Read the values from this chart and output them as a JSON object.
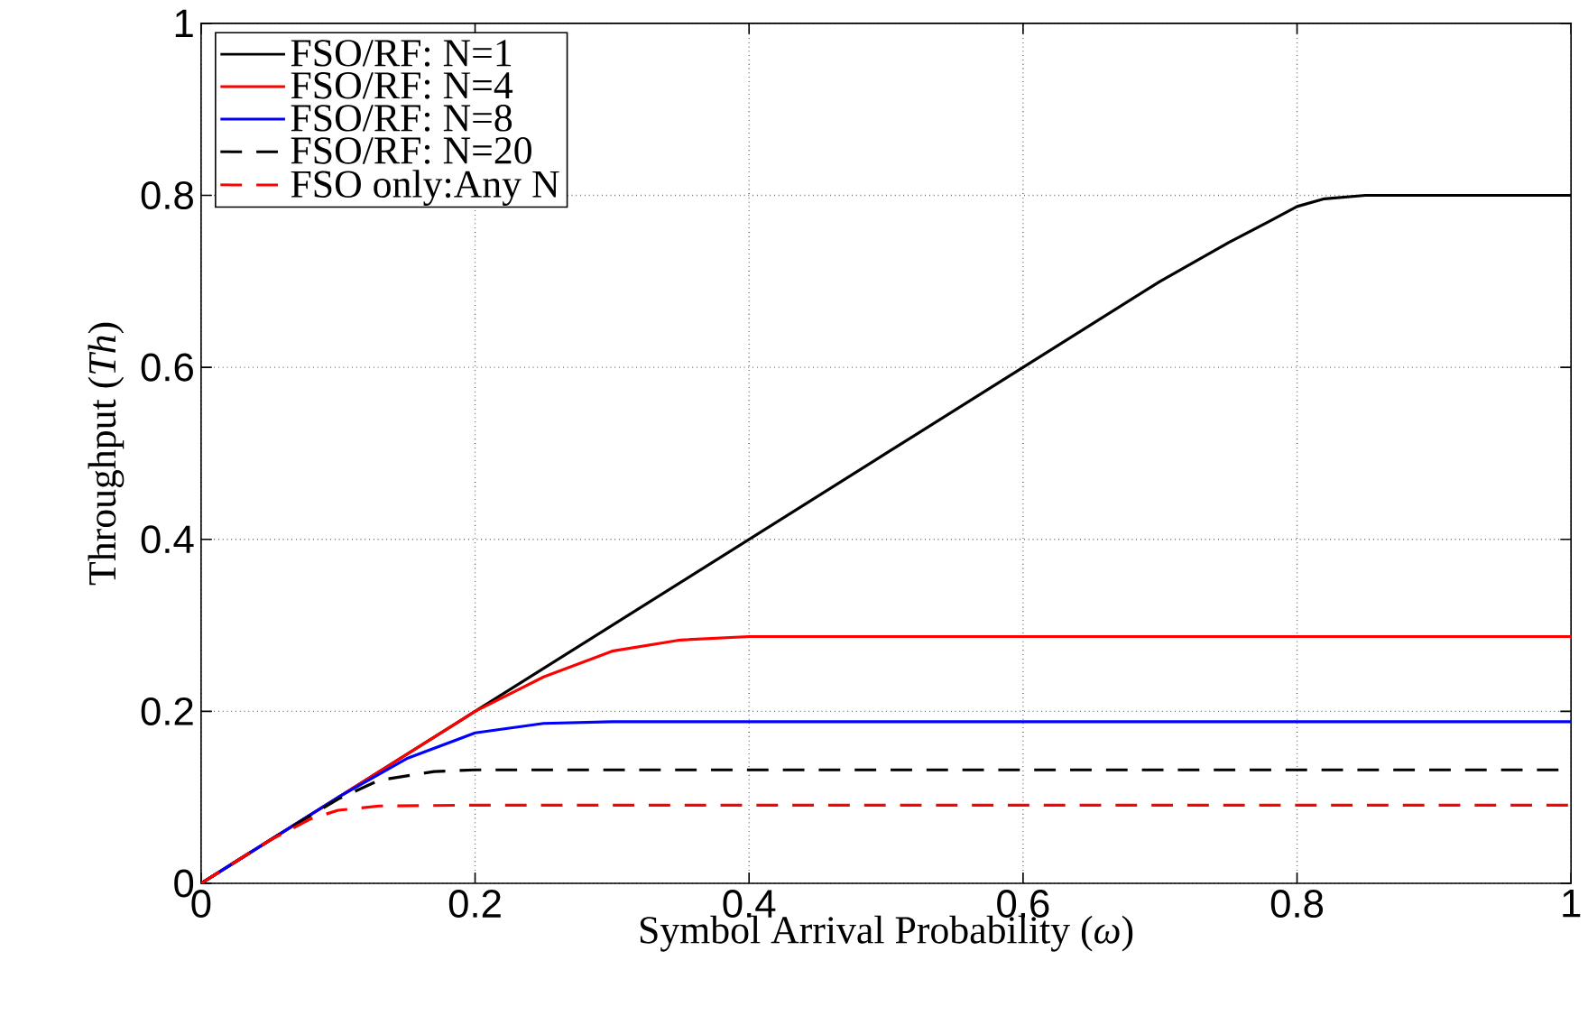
{
  "chart_data": {
    "type": "line",
    "xlabel": "Symbol Arrival Probability (*ω*)",
    "ylabel": "Throughput (*Th*)",
    "xlim": [
      0,
      1
    ],
    "ylim": [
      0,
      1
    ],
    "xticks": [
      0,
      0.2,
      0.4,
      0.6,
      0.8,
      1
    ],
    "yticks": [
      0,
      0.2,
      0.4,
      0.6,
      0.8,
      1
    ],
    "grid": true,
    "legend": "top left",
    "marker": "none",
    "series": [
      {
        "name": "FSO/RF: N=1",
        "color": "#000000",
        "line_style": "solid",
        "x": [
          0,
          0.1,
          0.2,
          0.3,
          0.4,
          0.5,
          0.6,
          0.7,
          0.75,
          0.78,
          0.8,
          0.82,
          0.85,
          0.9,
          1
        ],
        "values": [
          0,
          0.1,
          0.2,
          0.3,
          0.4,
          0.5,
          0.6,
          0.7,
          0.745,
          0.77,
          0.787,
          0.796,
          0.8,
          0.8,
          0.8
        ]
      },
      {
        "name": "FSO/RF: N=4",
        "color": "#ff0000",
        "line_style": "solid",
        "x": [
          0,
          0.2,
          0.25,
          0.3,
          0.35,
          0.4,
          1
        ],
        "values": [
          0,
          0.2,
          0.24,
          0.27,
          0.283,
          0.287,
          0.287
        ]
      },
      {
        "name": "FSO/RF: N=8",
        "color": "#0000ff",
        "line_style": "solid",
        "x": [
          0,
          0.1,
          0.15,
          0.2,
          0.25,
          0.3,
          1
        ],
        "values": [
          0,
          0.1,
          0.145,
          0.175,
          0.186,
          0.188,
          0.188
        ]
      },
      {
        "name": "FSO/RF: N=20",
        "color": "#000000",
        "line_style": "dashed",
        "x": [
          0,
          0.05,
          0.1,
          0.13,
          0.17,
          0.2,
          1
        ],
        "values": [
          0,
          0.05,
          0.098,
          0.12,
          0.13,
          0.132,
          0.132
        ]
      },
      {
        "name": "FSO only:Any N",
        "color": "#ff0000",
        "line_style": "dashed",
        "x": [
          0,
          0.05,
          0.08,
          0.1,
          0.13,
          0.2,
          1
        ],
        "values": [
          0,
          0.05,
          0.075,
          0.085,
          0.09,
          0.091,
          0.091
        ]
      }
    ]
  }
}
